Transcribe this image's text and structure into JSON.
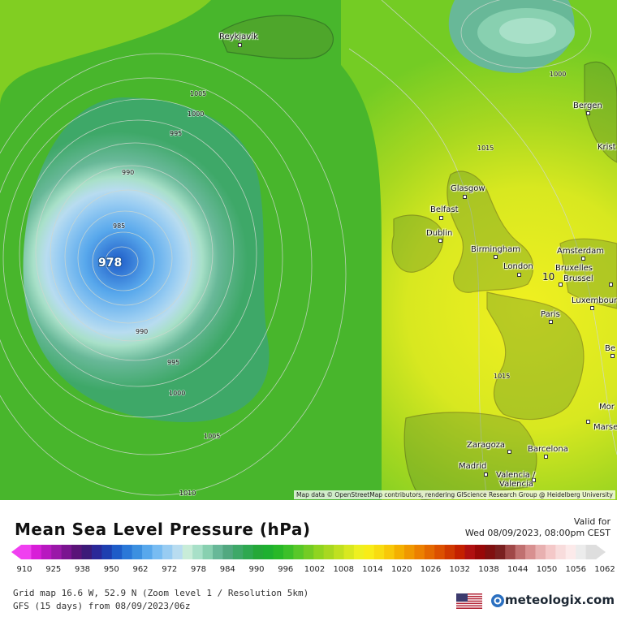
{
  "title": "Mean Sea Level Pressure (hPa)",
  "valid_label": "Valid for",
  "valid_time": "Wed 08/09/2023, 08:00pm CEST",
  "attribution": "Map data © OpenStreetMap contributors, rendering GIScience Research Group @ Heidelberg University",
  "low_center_value": "978",
  "isobar_labels": [
    "1005",
    "1000",
    "995",
    "990",
    "985",
    "990",
    "995",
    "1000",
    "1005",
    "1010",
    "1015",
    "1015",
    "1000",
    "10"
  ],
  "cities": [
    "Reykjavík",
    "Bergen",
    "Krist",
    "Glasgow",
    "Belfast",
    "Dublin",
    "Birmingham",
    "Amsterdam",
    "London",
    "Bruxelles",
    "Brussel",
    "Luxembour",
    "Paris",
    "Be",
    "Mor",
    "Marse",
    "Zaragoza",
    "Barcelona",
    "Madrid",
    "Valencia /",
    "Valencia"
  ],
  "scale_ticks": [
    "910",
    "925",
    "938",
    "950",
    "962",
    "972",
    "978",
    "984",
    "990",
    "996",
    "1002",
    "1008",
    "1014",
    "1020",
    "1026",
    "1032",
    "1038",
    "1044",
    "1050",
    "1056",
    "1062"
  ],
  "scale_colors": [
    "#f040f0",
    "#d81ed8",
    "#b818c0",
    "#9a18a8",
    "#7a1490",
    "#5a1478",
    "#3c1a78",
    "#2a2898",
    "#1e3fb0",
    "#1e5cc8",
    "#2a78d8",
    "#3c90e0",
    "#58a8ec",
    "#78bcf2",
    "#98ccf2",
    "#b8dcf0",
    "#c8ecd8",
    "#a8e0c8",
    "#88d0b0",
    "#68b898",
    "#52a880",
    "#3ea868",
    "#2ea850",
    "#24a838",
    "#1eb030",
    "#28b828",
    "#3cc028",
    "#58c828",
    "#74cc24",
    "#90d420",
    "#a8d820",
    "#c0e020",
    "#d8e820",
    "#eef020",
    "#f8ec18",
    "#f8dc10",
    "#f8c808",
    "#f4b000",
    "#f09800",
    "#ec8000",
    "#e46800",
    "#dc5000",
    "#d03800",
    "#c42000",
    "#b01010",
    "#980808",
    "#801010",
    "#7a2020",
    "#a04848",
    "#c07070",
    "#d89090",
    "#e8b0b0",
    "#f4c8c8",
    "#f8dcdc",
    "#fceaea",
    "#ececec",
    "#dedede"
  ],
  "footer_grid": "Grid map 16.6 W, 52.9 N (Zoom level 1 / Resolution 5km)",
  "footer_model": "GFS (15 days) from  08/09/2023/06z",
  "brand": "meteologix.com",
  "icons": {
    "flag": "us-flag-icon",
    "brand": "meteologix-logo-icon"
  }
}
